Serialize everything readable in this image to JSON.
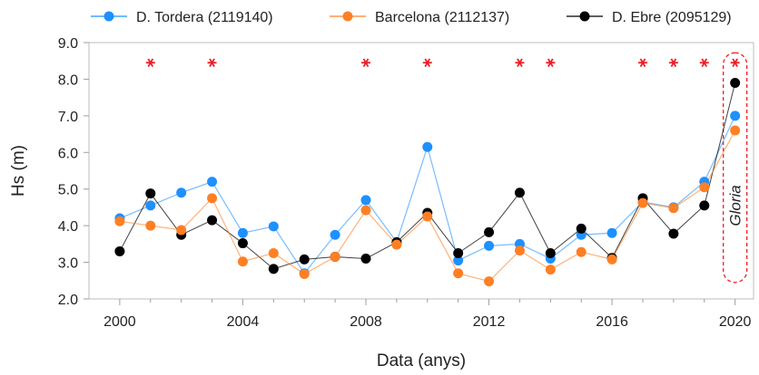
{
  "chart_data": {
    "type": "line",
    "xlabel": "Data (anys)",
    "ylabel": "Hs (m)",
    "xlim": [
      1999,
      2020.6
    ],
    "ylim": [
      2.0,
      9.0
    ],
    "xticks": [
      2000,
      2004,
      2008,
      2012,
      2016,
      2020
    ],
    "yticks": [
      2.0,
      3.0,
      4.0,
      5.0,
      6.0,
      7.0,
      8.0,
      9.0
    ],
    "ytick_labels": [
      "2.0",
      "3.0",
      "4.0",
      "5.0",
      "6.0",
      "7.0",
      "8.0",
      "9.0"
    ],
    "grid": false,
    "legend_position": "top",
    "x": [
      2000,
      2001,
      2002,
      2003,
      2004,
      2005,
      2006,
      2007,
      2008,
      2009,
      2010,
      2011,
      2012,
      2013,
      2014,
      2015,
      2016,
      2017,
      2018,
      2019,
      2020
    ],
    "series": [
      {
        "name": "D. Tordera (2119140)",
        "color": "#1e90ff",
        "values": [
          4.2,
          4.55,
          4.9,
          5.2,
          3.8,
          3.98,
          2.7,
          3.75,
          4.7,
          3.55,
          6.15,
          3.05,
          3.45,
          3.5,
          3.1,
          3.75,
          3.8,
          4.65,
          4.5,
          5.2,
          7.0
        ]
      },
      {
        "name": "Barcelona (2112137)",
        "color": "#ff7f24",
        "values": [
          4.12,
          4.0,
          3.88,
          4.75,
          3.02,
          3.25,
          2.68,
          3.15,
          4.42,
          3.48,
          4.25,
          2.7,
          2.48,
          3.32,
          2.8,
          3.28,
          3.08,
          4.62,
          4.48,
          5.05,
          6.6
        ]
      },
      {
        "name": "D. Ebre (2095129)",
        "color": "#000000",
        "values": [
          3.3,
          4.88,
          3.75,
          4.15,
          3.52,
          2.82,
          3.08,
          3.15,
          3.1,
          3.55,
          4.35,
          3.25,
          3.82,
          4.9,
          3.25,
          3.92,
          3.12,
          4.75,
          3.78,
          4.55,
          7.9
        ]
      }
    ],
    "star_markers": {
      "color": "#ee1c24",
      "y": 8.45,
      "x": [
        2001,
        2003,
        2008,
        2010,
        2013,
        2014,
        2017,
        2018,
        2019,
        2020
      ]
    },
    "annotation": {
      "label": "Gloria",
      "x": 2020,
      "color": "#ee1c24"
    }
  }
}
